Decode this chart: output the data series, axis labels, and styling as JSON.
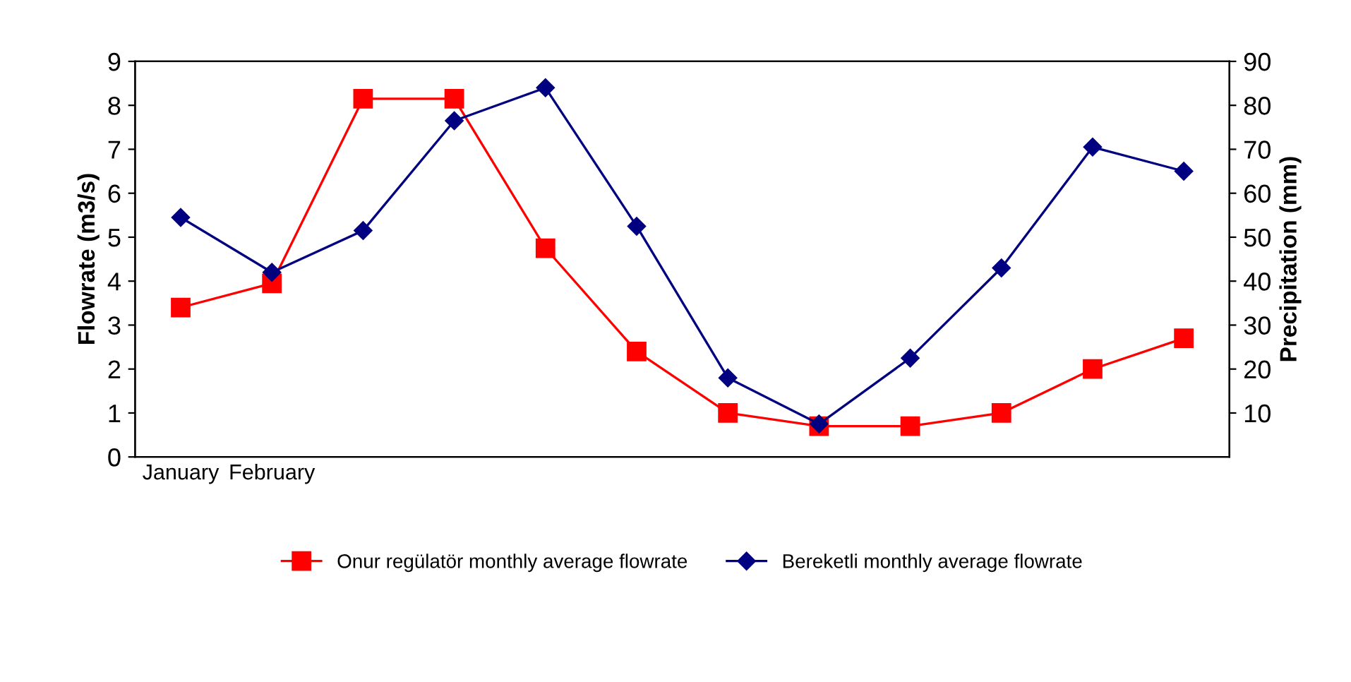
{
  "chart_data": {
    "type": "line",
    "categories": [
      "January",
      "February",
      null,
      null,
      null,
      null,
      null,
      null,
      null,
      null,
      null,
      null
    ],
    "series": [
      {
        "name": "Onur regülatör monthly average flowrate",
        "color": "#ff0000",
        "marker": "square",
        "values": [
          3.4,
          3.95,
          8.15,
          8.15,
          4.75,
          2.4,
          1.0,
          0.7,
          0.7,
          1.0,
          2.0,
          2.7
        ]
      },
      {
        "name": "Bereketli monthly average flowrate",
        "color": "#000080",
        "marker": "diamond",
        "values": [
          5.45,
          4.2,
          5.15,
          7.65,
          8.4,
          5.25,
          1.8,
          0.75,
          2.25,
          4.3,
          7.05,
          6.5
        ]
      }
    ],
    "ylabel": "Flowrate (m3/s)",
    "y2label": "Precipitation (mm)",
    "ylim": [
      0,
      9
    ],
    "yticks": [
      0,
      1,
      2,
      3,
      4,
      5,
      6,
      7,
      8,
      9
    ],
    "y2lim": [
      0,
      90
    ],
    "y2ticks": [
      10,
      20,
      30,
      40,
      50,
      60,
      70,
      80,
      90
    ],
    "grid": false,
    "legend": "bottom",
    "line_style": "solid"
  }
}
